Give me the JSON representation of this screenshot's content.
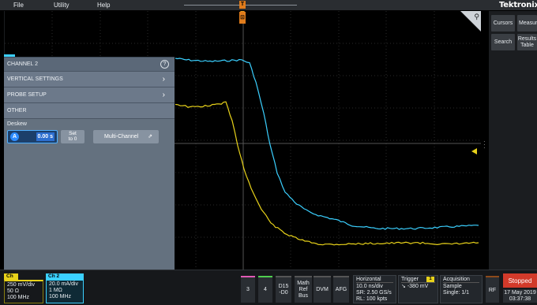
{
  "menu": {
    "file": "File",
    "utility": "Utility",
    "help": "Help"
  },
  "brand": "Tektronix",
  "trigger_position_label": "T",
  "side_panel": {
    "cursors": "Cursors",
    "measure": "Measur",
    "search": "Search",
    "results_table": [
      "Results",
      "Table"
    ]
  },
  "channel_panel": {
    "title": "CHANNEL 2",
    "help_glyph": "?",
    "vertical_settings": "VERTICAL SETTINGS",
    "probe_setup": "PROBE SETUP",
    "other": "OTHER",
    "deskew_label": "Deskew",
    "deskew_knob": "A",
    "deskew_value": "0.00 s",
    "set_to_zero": [
      "Set",
      "to 0"
    ],
    "multi_channel": "Multi-Channel"
  },
  "ch1": {
    "tag": "Ch 1",
    "lines": [
      "250 mV/div",
      "50 Ω",
      "100 MHz"
    ],
    "color": "#e8d21a"
  },
  "ch2": {
    "tag": "Ch 2",
    "lines": [
      "20.0 mA/div",
      "1 MΩ",
      "100 MHz"
    ],
    "color": "#3bd0ff"
  },
  "bottom_buttons": {
    "ch3": "3",
    "ch4": "4",
    "digital": [
      "D15",
      "-D0"
    ],
    "math": [
      "Math",
      "Ref",
      "Bus"
    ],
    "dvm": "DVM",
    "afg": "AFG",
    "rf": "RF"
  },
  "horizontal": {
    "title": "Horizontal",
    "lines": [
      "10.0 ns/div",
      "SR: 2.50 GS/s",
      "RL: 100 kpts"
    ]
  },
  "trigger": {
    "title": "Trigger",
    "channel": "1",
    "value": "-380 mV"
  },
  "acquisition": {
    "title": "Acquisition",
    "lines": [
      "Sample",
      "Single: 1/1"
    ]
  },
  "run_state": "Stopped",
  "date": "17 May 2019",
  "time": "03:37:38"
}
